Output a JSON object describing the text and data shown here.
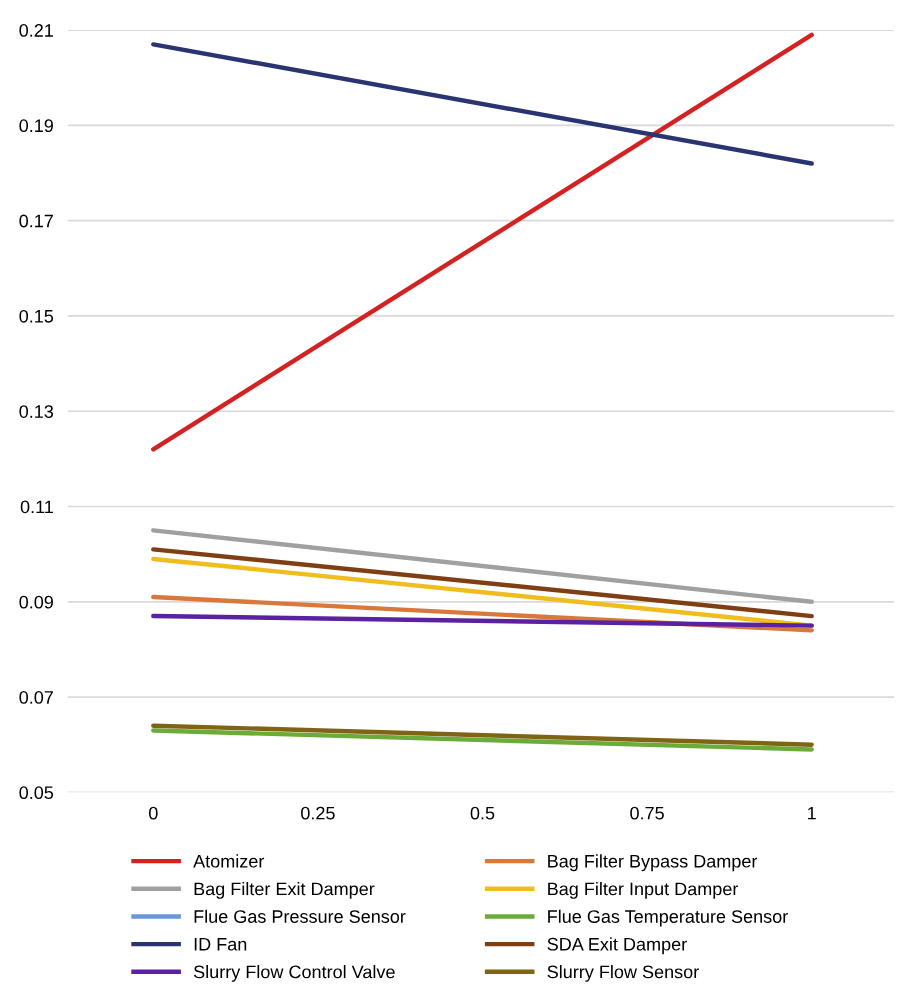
{
  "chart_data": {
    "type": "line",
    "x": [
      0,
      1
    ],
    "series": [
      {
        "name": "Atomizer",
        "color": "#d42121",
        "values": [
          0.122,
          0.209
        ]
      },
      {
        "name": "Bag Filter Bypass Damper",
        "color": "#d9783a",
        "values": [
          0.091,
          0.084
        ]
      },
      {
        "name": "Bag Filter Exit Damper",
        "color": "#a0a0a0",
        "values": [
          0.105,
          0.09
        ]
      },
      {
        "name": "Bag Filter Input Damper",
        "color": "#f0bd1e",
        "values": [
          0.099,
          0.085
        ]
      },
      {
        "name": "Flue Gas Pressure Sensor",
        "color": "#6a96dc",
        "values": [
          null,
          null
        ]
      },
      {
        "name": "Flue Gas Temperature Sensor",
        "color": "#6aab3a",
        "values": [
          0.063,
          0.059
        ]
      },
      {
        "name": "ID Fan",
        "color": "#2a3470",
        "values": [
          0.207,
          0.182
        ]
      },
      {
        "name": "SDA Exit Damper",
        "color": "#7e3f13",
        "values": [
          0.101,
          0.087
        ]
      },
      {
        "name": "Slurry Flow Control Valve",
        "color": "#5a22a0",
        "values": [
          0.087,
          0.085
        ]
      },
      {
        "name": "Slurry Flow Sensor",
        "color": "#7f6414",
        "values": [
          0.064,
          0.06
        ]
      }
    ],
    "xlim": [
      -0.13,
      1.125
    ],
    "xticks": [
      0,
      0.25,
      0.5,
      0.75,
      1
    ],
    "ylim": [
      0.05,
      0.21
    ],
    "yticks": [
      0.05,
      0.07,
      0.09,
      0.11,
      0.13,
      0.15,
      0.17,
      0.19,
      0.21
    ],
    "grid": "y",
    "legend": "bottom",
    "marker": "none",
    "line_style": "solid"
  }
}
